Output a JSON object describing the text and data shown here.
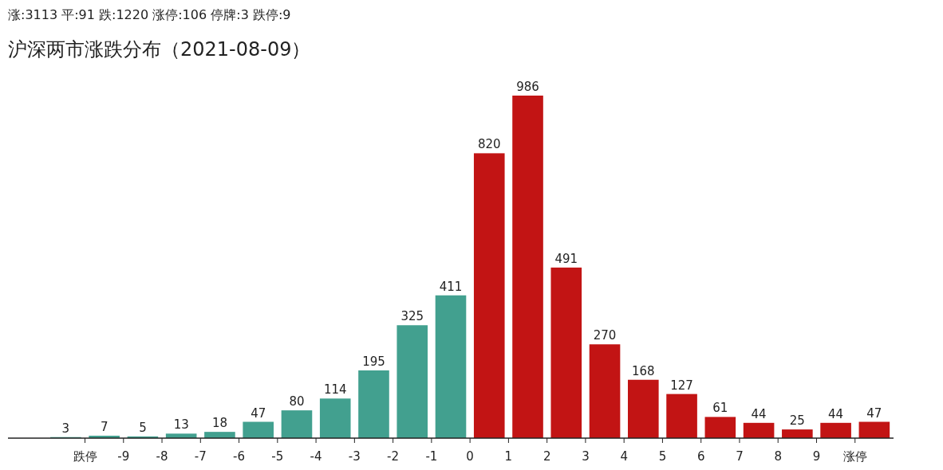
{
  "chart_data": {
    "type": "bar",
    "title": "沪深两市涨跌分布（2021-08-09）",
    "subtitle": "涨:3113 平:91 跌:1220 涨停:106 停牌:3 跌停:9",
    "x": [
      -10.5,
      -9.5,
      -8.5,
      -7.5,
      -6.5,
      -5.5,
      -4.5,
      -3.5,
      -2.5,
      -1.5,
      -0.5,
      0.5,
      1.5,
      2.5,
      3.5,
      4.5,
      5.5,
      6.5,
      7.5,
      8.5,
      9.5,
      10.5
    ],
    "values": [
      3,
      7,
      5,
      13,
      18,
      47,
      80,
      114,
      195,
      325,
      411,
      820,
      986,
      491,
      270,
      168,
      127,
      61,
      44,
      25,
      44,
      47
    ],
    "colors": [
      "#42a08f",
      "#42a08f",
      "#42a08f",
      "#42a08f",
      "#42a08f",
      "#42a08f",
      "#42a08f",
      "#42a08f",
      "#42a08f",
      "#42a08f",
      "#42a08f",
      "#c21414",
      "#c21414",
      "#c21414",
      "#c21414",
      "#c21414",
      "#c21414",
      "#c21414",
      "#c21414",
      "#c21414",
      "#c21414",
      "#c21414"
    ],
    "xlim": [
      -12,
      11
    ],
    "xticks": [
      {
        "value": -10,
        "label": "跌停"
      },
      -9,
      -8,
      -7,
      -6,
      -5,
      -4,
      -3,
      -2,
      -1,
      0,
      1,
      2,
      3,
      4,
      5,
      6,
      7,
      8,
      9,
      {
        "value": 10,
        "label": "涨停"
      }
    ],
    "data_labels": true
  }
}
